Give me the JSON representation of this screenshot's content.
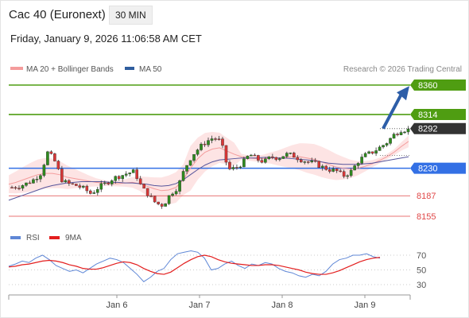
{
  "header": {
    "instrument": "Cac 40 (Euronext)",
    "timeframe": "30 MIN",
    "datetime": "Friday, January 9, 2026 11:06:58 AM CET"
  },
  "legend": {
    "ma20_label": "MA 20 + Bollinger Bands",
    "ma50_label": "MA 50",
    "copyright": "Research © 2026 Trading Central",
    "rsi_label": "RSI",
    "ma9_label": "9MA"
  },
  "colors": {
    "resistance": "#4f9d12",
    "support": "#3370e5",
    "secondary": "#e04747",
    "current": "#333333",
    "ma20": "#f49c9c",
    "ma50": "#56559b",
    "bollinger_fill": "#fde4e4",
    "arrow": "#2d5ea8",
    "rsi": "#5f87d6",
    "rsi_ma": "#e31e1e"
  },
  "chart_data": [
    {
      "type": "candlestick",
      "title": "Cac 40 (Euronext)",
      "timeframe": "30 MIN",
      "ylim": [
        8140,
        8380
      ],
      "x_tick_labels": [
        "Jan 6",
        "Jan 7",
        "Jan 8",
        "Jan 9"
      ],
      "levels": [
        {
          "label": "8360",
          "value": 8360,
          "style": "resistance"
        },
        {
          "label": "8314",
          "value": 8314,
          "style": "resistance"
        },
        {
          "label": "8292",
          "value": 8292,
          "style": "current"
        },
        {
          "label": "8230",
          "value": 8230,
          "style": "support"
        },
        {
          "label": "8187",
          "value": 8187,
          "style": "secondary"
        },
        {
          "label": "8155",
          "value": 8155,
          "style": "secondary"
        }
      ],
      "close_profile": [
        8200,
        8202,
        8206,
        8212,
        8222,
        8256,
        8240,
        8210,
        8205,
        8203,
        8198,
        8190,
        8200,
        8206,
        8214,
        8218,
        8222,
        8225,
        8200,
        8188,
        8175,
        8172,
        8190,
        8200,
        8230,
        8250,
        8262,
        8272,
        8278,
        8272,
        8228,
        8230,
        8238,
        8252,
        8244,
        8240,
        8248,
        8246,
        8252,
        8250,
        8244,
        8240,
        8238,
        8232,
        8228,
        8226,
        8218,
        8224,
        8240,
        8250,
        8255,
        8262,
        8270,
        8282,
        8290,
        8290
      ],
      "series": [
        {
          "name": "MA 20 + Bollinger Bands",
          "ma20": [
            8205,
            8208,
            8212,
            8216,
            8220,
            8222,
            8222,
            8220,
            8216,
            8214,
            8212,
            8210,
            8208,
            8207,
            8206,
            8206,
            8207,
            8208,
            8206,
            8202,
            8198,
            8195,
            8196,
            8200,
            8212,
            8230,
            8245,
            8255,
            8260,
            8262,
            8257,
            8252,
            8248,
            8246,
            8245,
            8245,
            8246,
            8246,
            8247,
            8248,
            8248,
            8246,
            8244,
            8240,
            8236,
            8232,
            8230,
            8229,
            8230,
            8233,
            8237,
            8242,
            8248,
            8255,
            8264,
            8272
          ]
        },
        {
          "name": "MA 50",
          "values": [
            8180,
            8184,
            8188,
            8192,
            8196,
            8200,
            8203,
            8205,
            8207,
            8208,
            8209,
            8209,
            8209,
            8209,
            8208,
            8208,
            8207,
            8207,
            8206,
            8205,
            8203,
            8202,
            8203,
            8206,
            8212,
            8220,
            8228,
            8235,
            8240,
            8243,
            8244,
            8245,
            8246,
            8246,
            8246,
            8247,
            8247,
            8246,
            8246,
            8245,
            8244,
            8243,
            8242,
            8240,
            8238,
            8237,
            8236,
            8236,
            8236,
            8237,
            8238,
            8240,
            8242,
            8244,
            8246,
            8248
          ]
        }
      ]
    },
    {
      "type": "line",
      "title": "RSI",
      "ylim": [
        20,
        80
      ],
      "y_ticks": [
        70,
        50,
        30
      ],
      "series": [
        {
          "name": "RSI",
          "values": [
            55,
            58,
            62,
            60,
            66,
            70,
            64,
            56,
            52,
            48,
            50,
            46,
            52,
            58,
            62,
            66,
            64,
            60,
            52,
            44,
            34,
            40,
            48,
            52,
            64,
            72,
            74,
            76,
            74,
            66,
            50,
            52,
            58,
            62,
            56,
            52,
            58,
            56,
            60,
            58,
            52,
            48,
            46,
            42,
            40,
            44,
            42,
            48,
            58,
            64,
            66,
            70,
            70,
            72,
            68,
            66
          ]
        },
        {
          "name": "9MA",
          "values": [
            54,
            55,
            57,
            58,
            60,
            62,
            63,
            62,
            60,
            57,
            55,
            52,
            51,
            51,
            53,
            56,
            59,
            61,
            60,
            57,
            52,
            48,
            45,
            44,
            47,
            53,
            59,
            64,
            68,
            70,
            68,
            64,
            61,
            59,
            58,
            57,
            56,
            56,
            57,
            57,
            56,
            54,
            52,
            50,
            47,
            45,
            44,
            44,
            46,
            49,
            53,
            57,
            61,
            64,
            66,
            67
          ]
        }
      ]
    }
  ]
}
